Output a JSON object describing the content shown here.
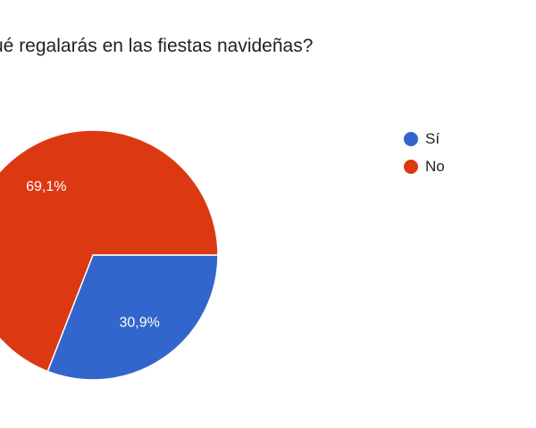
{
  "page": {
    "title": "ué regalarás en las fiestas navideñas?"
  },
  "chart_data": {
    "type": "pie",
    "title": "ué regalarás en las fiestas navideñas?",
    "categories": [
      "Sí",
      "No"
    ],
    "values": [
      30.9,
      69.1
    ],
    "labels": [
      "30,9%",
      "69,1%"
    ],
    "colors": [
      "#3366cc",
      "#dc3912"
    ],
    "legend": {
      "position": "right",
      "items": [
        {
          "label": "Sí",
          "color": "#3366cc"
        },
        {
          "label": "No",
          "color": "#dc3912"
        }
      ]
    }
  }
}
